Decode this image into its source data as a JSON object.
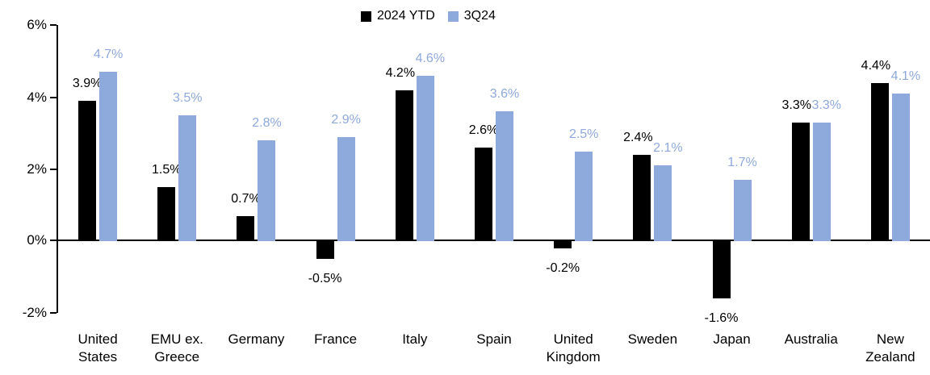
{
  "chart_data": {
    "type": "bar",
    "title": "",
    "categories": [
      "United States",
      "EMU ex. Greece",
      "Germany",
      "France",
      "Italy",
      "Spain",
      "United Kingdom",
      "Sweden",
      "Japan",
      "Australia",
      "New Zealand"
    ],
    "category_label_lines": [
      [
        "United",
        "States"
      ],
      [
        "EMU ex.",
        "Greece"
      ],
      [
        "Germany"
      ],
      [
        "France"
      ],
      [
        "Italy"
      ],
      [
        "Spain"
      ],
      [
        "United",
        "Kingdom"
      ],
      [
        "Sweden"
      ],
      [
        "Japan"
      ],
      [
        "Australia"
      ],
      [
        "New",
        "Zealand"
      ]
    ],
    "series": [
      {
        "name": "2024 YTD",
        "color": "#000000",
        "values": [
          3.9,
          1.5,
          0.7,
          -0.5,
          4.2,
          2.6,
          -0.2,
          2.4,
          -1.6,
          3.3,
          4.4
        ],
        "labels": [
          "3.9%",
          "1.5%",
          "0.7%",
          "-0.5%",
          "4.2%",
          "2.6%",
          "-0.2%",
          "2.4%",
          "-1.6%",
          "3.3%",
          "4.4%"
        ]
      },
      {
        "name": "3Q24",
        "color": "#8EA9DB",
        "values": [
          4.7,
          3.5,
          2.8,
          2.9,
          4.6,
          3.6,
          2.5,
          2.1,
          1.7,
          3.3,
          4.1
        ],
        "labels": [
          "4.7%",
          "3.5%",
          "2.8%",
          "2.9%",
          "4.6%",
          "3.6%",
          "2.5%",
          "2.1%",
          "1.7%",
          "3.3%",
          "4.1%"
        ]
      }
    ],
    "y_axis": {
      "min": -2,
      "max": 6,
      "ticks": [
        {
          "value": 6,
          "label": "6%"
        },
        {
          "value": 4,
          "label": "4%"
        },
        {
          "value": 2,
          "label": "2%"
        },
        {
          "value": 0,
          "label": "0%"
        },
        {
          "value": -2,
          "label": "-2%"
        }
      ]
    },
    "legend_position": "top",
    "grid": false,
    "value_suffix": "%"
  }
}
